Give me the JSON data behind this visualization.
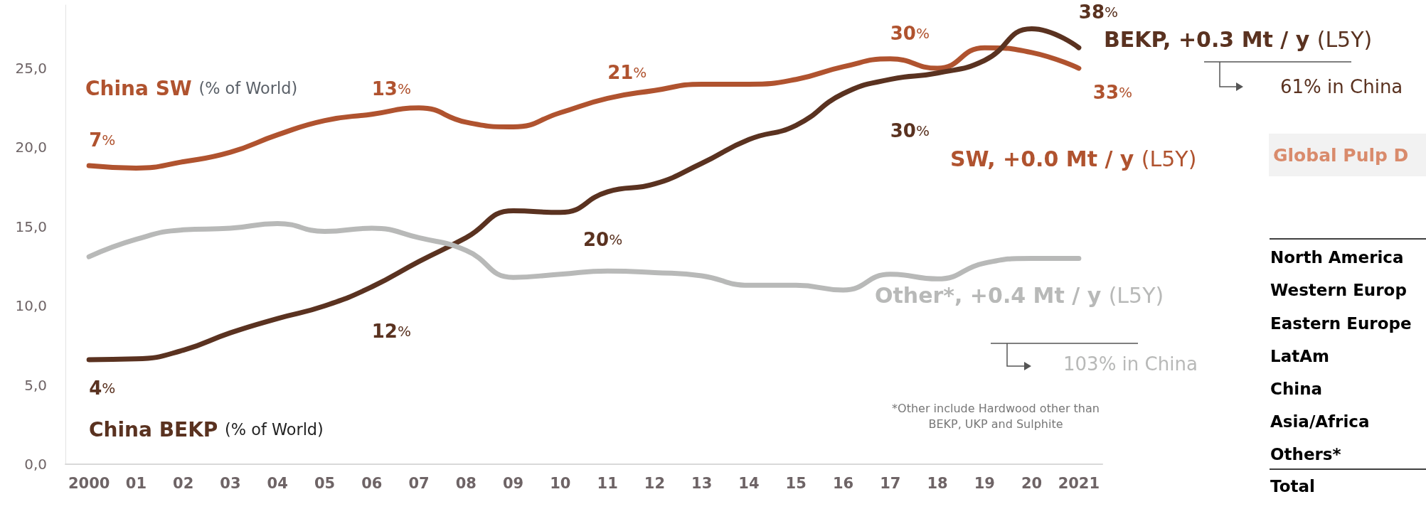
{
  "chart_data": {
    "type": "line",
    "categories": [
      "2000",
      "01",
      "02",
      "03",
      "04",
      "05",
      "06",
      "07",
      "08",
      "09",
      "10",
      "11",
      "12",
      "13",
      "14",
      "15",
      "16",
      "17",
      "18",
      "19",
      "20",
      "2021"
    ],
    "series": [
      {
        "name": "SW, +0.0 Mt / y (L5Y)",
        "color": "#b0532f",
        "values": [
          18.85,
          18.7,
          19.1,
          19.7,
          20.8,
          21.7,
          22.1,
          22.5,
          21.6,
          21.3,
          22.2,
          23.1,
          23.6,
          24.0,
          24.0,
          24.3,
          25.1,
          25.6,
          25.0,
          26.3,
          26.0,
          25.0
        ]
      },
      {
        "name": "BEKP, +0.3 Mt / y (L5Y)",
        "color": "#5a3220",
        "values": [
          6.6,
          6.65,
          7.2,
          8.3,
          9.2,
          10.0,
          11.2,
          12.8,
          14.3,
          16.0,
          15.9,
          17.2,
          17.7,
          19.0,
          20.5,
          21.4,
          23.4,
          24.3,
          24.7,
          25.5,
          27.5,
          26.3
        ]
      },
      {
        "name": "Other*, +0.4 Mt / y (L5Y)",
        "color": "#b8b9b8",
        "values": [
          13.1,
          14.2,
          14.8,
          14.9,
          15.2,
          14.7,
          14.9,
          14.3,
          13.5,
          11.8,
          12.0,
          12.2,
          12.1,
          11.9,
          11.3,
          11.3,
          11.0,
          12.0,
          11.7,
          12.7,
          13.0,
          13.0
        ]
      }
    ],
    "ylim": [
      0,
      29
    ],
    "yticks": [
      {
        "value": 0,
        "label": "0,0"
      },
      {
        "value": 5,
        "label": "5,0"
      },
      {
        "value": 10,
        "label": "10,0"
      },
      {
        "value": 15,
        "label": "15,0"
      },
      {
        "value": 20,
        "label": "20,0"
      },
      {
        "value": 25,
        "label": "25,0"
      }
    ],
    "grid": false,
    "legend": false,
    "marker": "none",
    "line_style": "solid",
    "annotations": [
      "China SW (% of World)",
      "China BEKP (% of World)",
      "61% in China",
      "103% in China",
      "*Other include Hardwood other than\nBEKP, UKP and Sulphite",
      "Global Pulp D",
      "20%",
      "North America",
      "Western Europ",
      "Eastern Europe",
      "LatAm",
      "China",
      "Asia/Africa",
      "Others*",
      "Total",
      {
        "text": "7%",
        "x": "2000",
        "y": 18.85
      },
      {
        "text": "13%",
        "x": "06",
        "y": 22.1
      },
      {
        "text": "21%",
        "x": "11",
        "y": 23.1
      },
      {
        "text": "30%",
        "x": "17",
        "y": 25.6
      },
      {
        "text": "33%",
        "x": "2021",
        "y": 25.0
      },
      {
        "text": "4%",
        "x": "2000",
        "y": 6.6
      },
      {
        "text": "12%",
        "x": "06",
        "y": 11.2
      },
      {
        "text": "30%",
        "x": "17",
        "y": 24.3
      },
      {
        "text": "38%",
        "x": "2021",
        "y": 26.3
      }
    ]
  }
}
